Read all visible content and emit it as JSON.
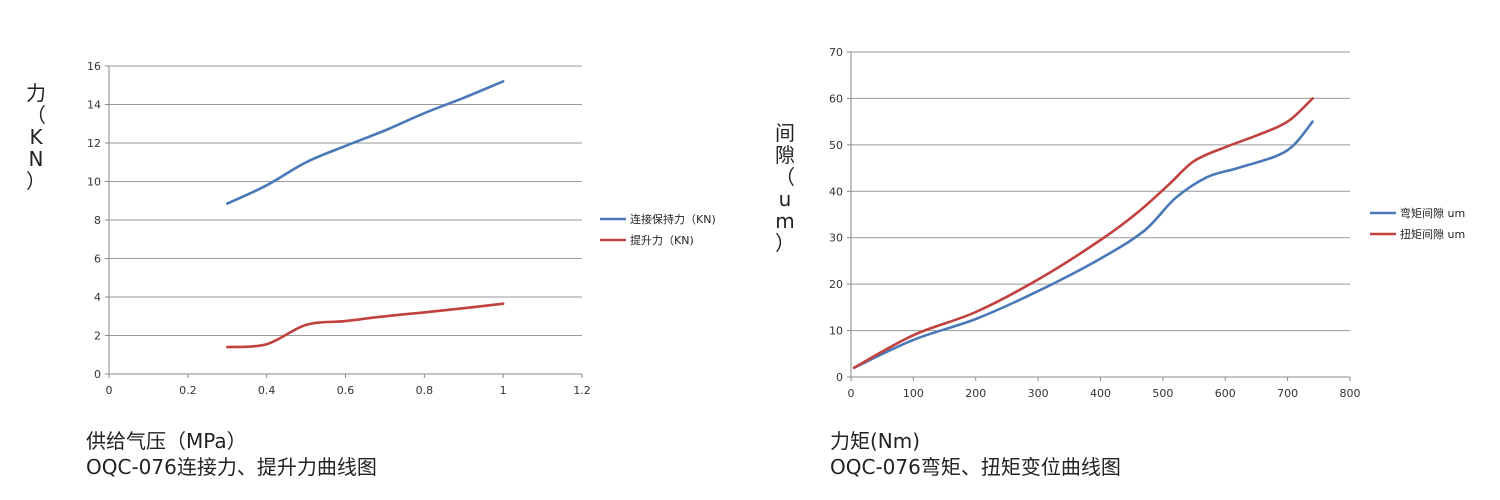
{
  "colors": {
    "blue": "#4a78b8",
    "red": "#c0413d",
    "grid": "#9a9a9a",
    "axis": "#8a8a8a"
  },
  "chart_data": [
    {
      "type": "line",
      "ylabel_chars": [
        "力",
        "（",
        "K",
        "N",
        "）"
      ],
      "xlabel": "供给气压（MPa）",
      "title": "OQC-076连接力、提升力曲线图",
      "xlim": [
        0,
        1.2
      ],
      "ylim": [
        0,
        16
      ],
      "x_ticks": [
        "0",
        "0.2",
        "0.4",
        "0.6",
        "0.8",
        "1",
        "1.2"
      ],
      "y_ticks": [
        "0",
        "2",
        "4",
        "6",
        "8",
        "10",
        "12",
        "14",
        "16"
      ],
      "grid": true,
      "legend_position": "right",
      "series": [
        {
          "name": "连接保持力（KN)",
          "color": "#4a78b8",
          "x": [
            0.3,
            0.4,
            0.5,
            0.6,
            0.7,
            0.8,
            0.9,
            1.0
          ],
          "y": [
            8.85,
            9.8,
            11.0,
            11.85,
            12.65,
            13.55,
            14.35,
            15.2
          ]
        },
        {
          "name": "提升力（KN)",
          "color": "#c0413d",
          "x": [
            0.3,
            0.4,
            0.5,
            0.6,
            0.7,
            0.8,
            0.9,
            1.0
          ],
          "y": [
            1.4,
            1.55,
            2.55,
            2.75,
            3.0,
            3.2,
            3.42,
            3.65
          ]
        }
      ]
    },
    {
      "type": "line",
      "ylabel_chars": [
        "间",
        "隙",
        "（",
        "u",
        "m",
        "）"
      ],
      "xlabel": "力矩(Nm)",
      "title": "OQC-076弯矩、扭矩变位曲线图",
      "xlim": [
        0,
        800
      ],
      "ylim": [
        0,
        70
      ],
      "x_ticks": [
        "0",
        "100",
        "200",
        "300",
        "400",
        "500",
        "600",
        "700",
        "800"
      ],
      "y_ticks": [
        "0",
        "10",
        "20",
        "30",
        "40",
        "50",
        "60",
        "70"
      ],
      "grid": true,
      "legend_position": "right",
      "series": [
        {
          "name": "弯矩间隙 um",
          "color": "#4a78b8",
          "x": [
            5,
            100,
            200,
            300,
            400,
            470,
            520,
            570,
            620,
            680,
            710,
            740
          ],
          "y": [
            2,
            8,
            12.5,
            18.5,
            25.5,
            31.5,
            38.5,
            43,
            45,
            47.5,
            50,
            55
          ]
        },
        {
          "name": "扭矩间隙 um",
          "color": "#c0413d",
          "x": [
            5,
            100,
            200,
            300,
            400,
            460,
            510,
            550,
            600,
            650,
            700,
            740
          ],
          "y": [
            2,
            9,
            14,
            21,
            29.5,
            35.5,
            41.5,
            46.5,
            49.5,
            52,
            55,
            60
          ]
        }
      ]
    }
  ]
}
